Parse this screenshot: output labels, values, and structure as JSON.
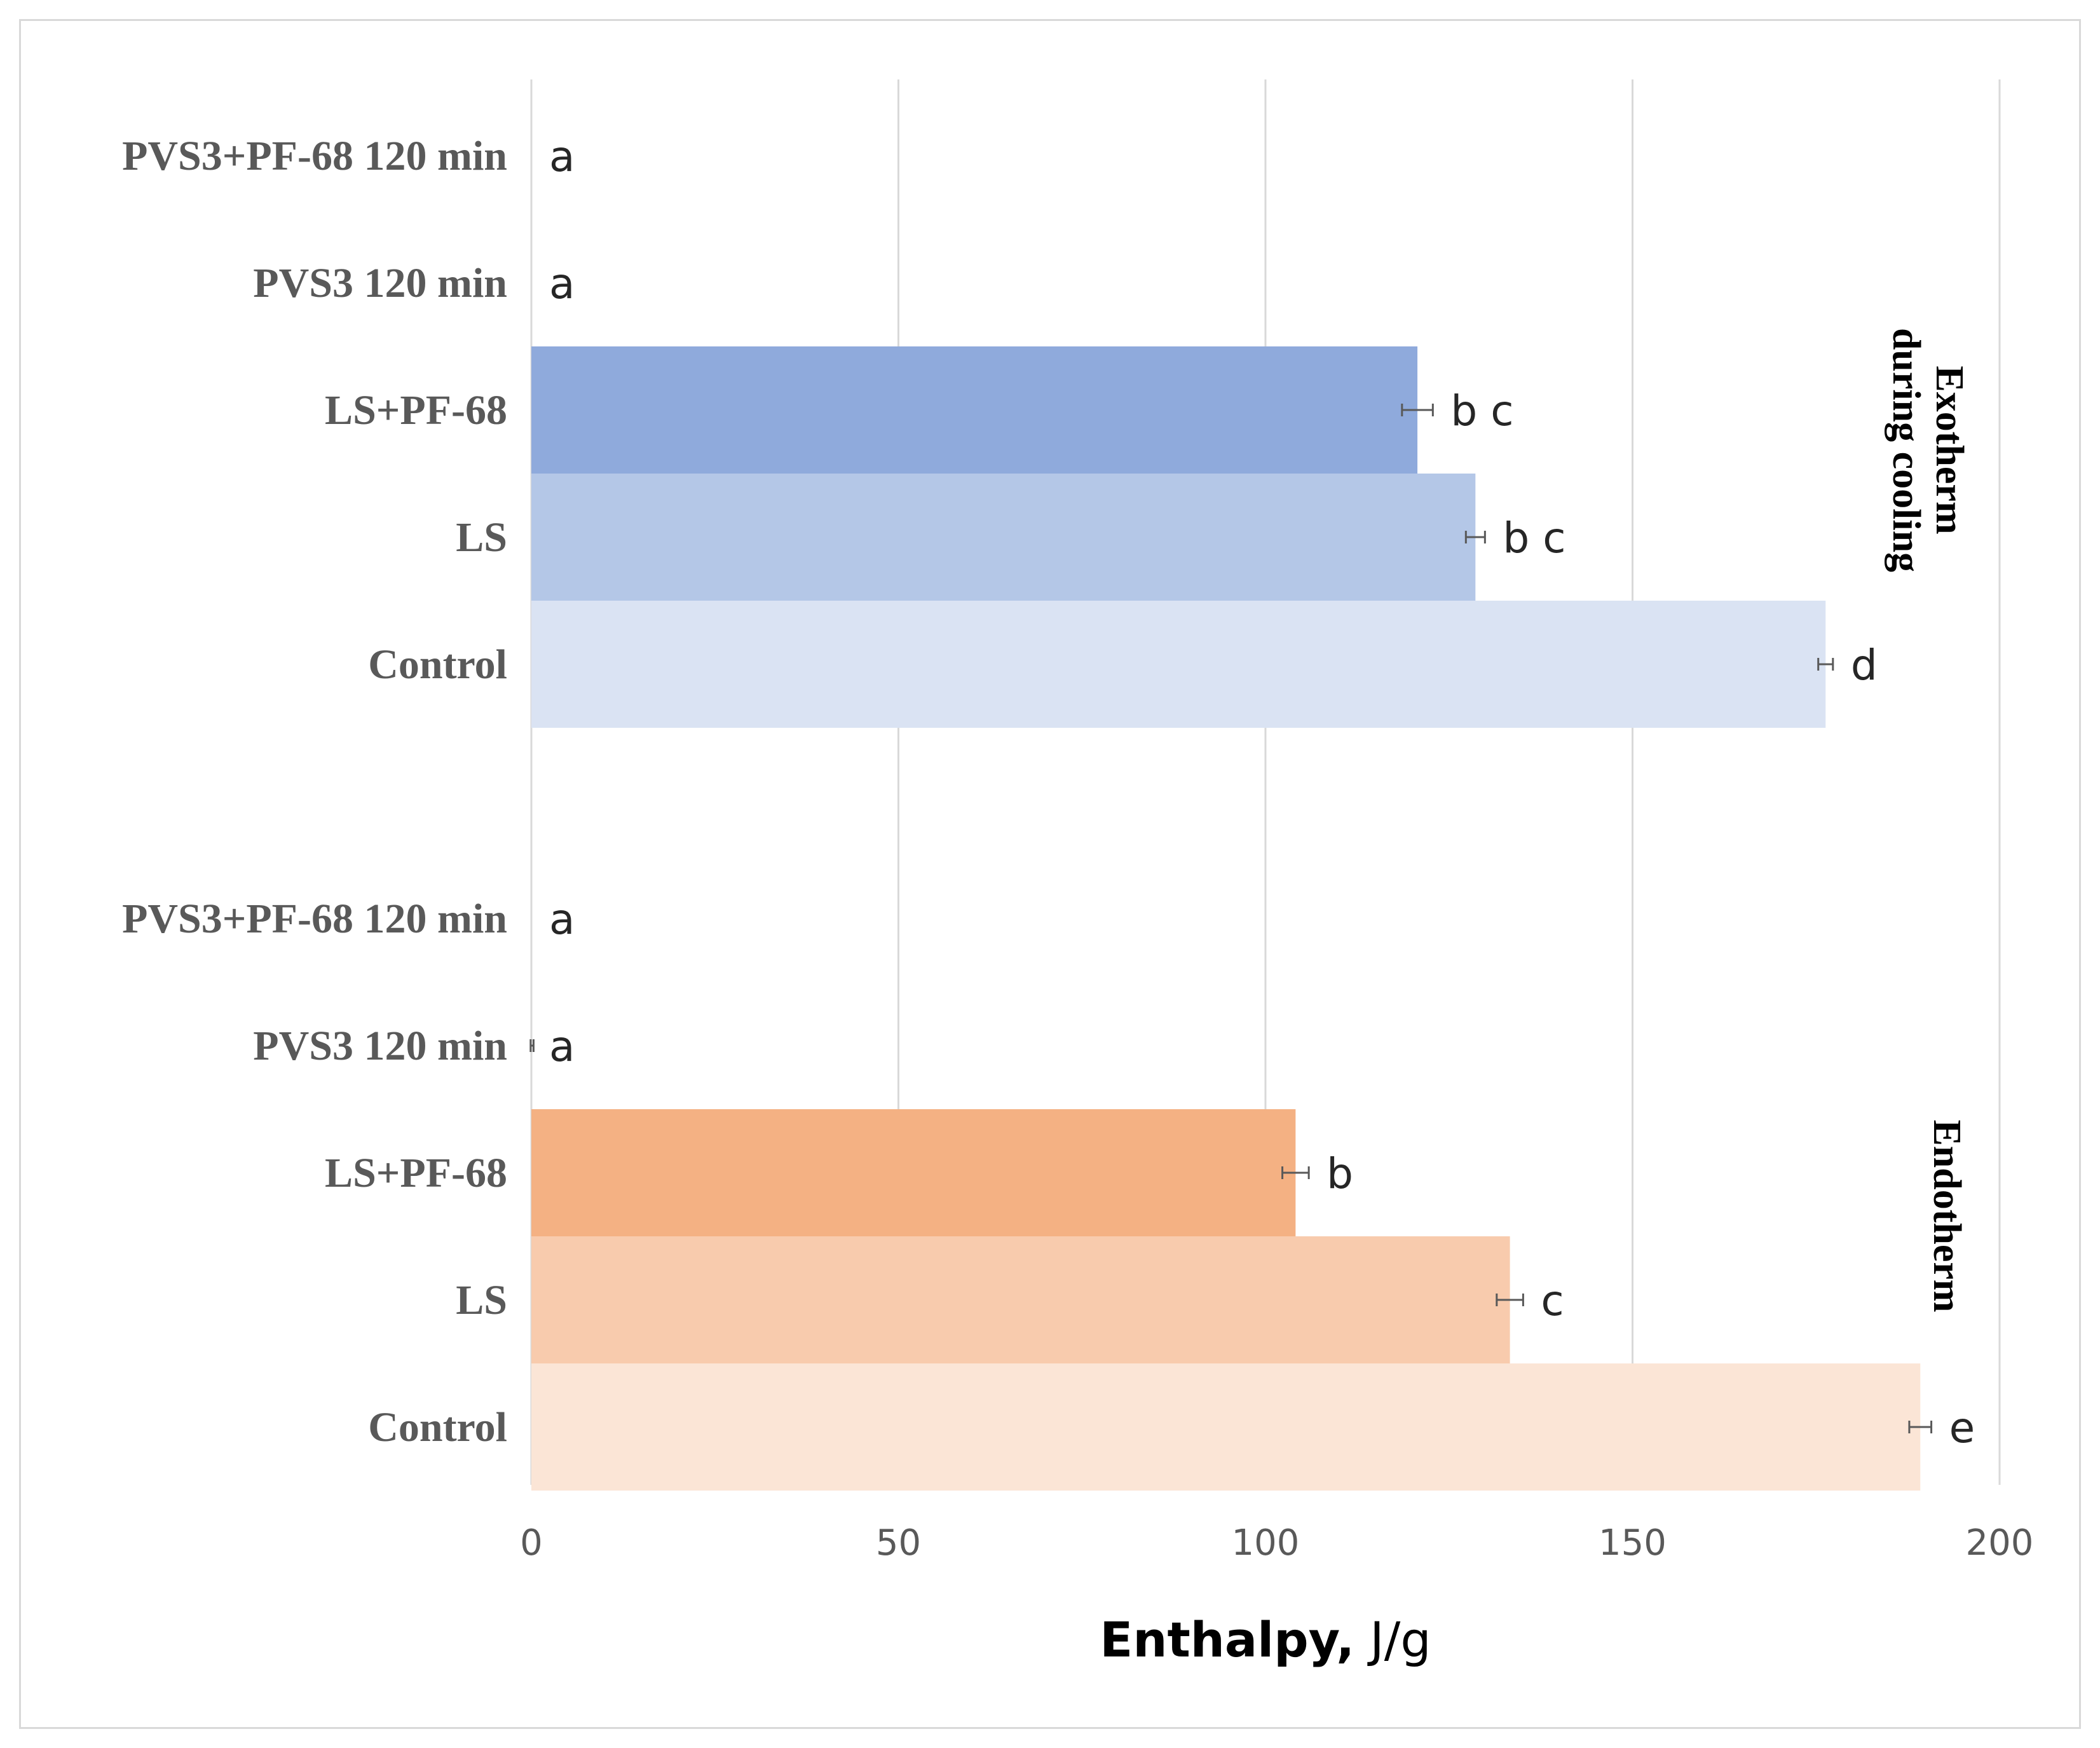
{
  "chart_data": {
    "type": "bar",
    "orientation": "horizontal",
    "xlabel_bold": "Enthalpy,",
    "xlabel_rest": " J/g",
    "xlim": [
      0,
      200
    ],
    "xticks": [
      0,
      50,
      100,
      150,
      200
    ],
    "grid": true,
    "groups": [
      {
        "name": "Exotherm during cooling",
        "label_lines": [
          "Exotherm",
          "during cooling"
        ],
        "bars": [
          {
            "category": "PVS3+PF-68 120 min",
            "value": 0,
            "error": 0,
            "letter": "a",
            "color": "#8faadc"
          },
          {
            "category": "PVS3 120 min",
            "value": 0,
            "error": 0,
            "letter": "a",
            "color": "#8faadc"
          },
          {
            "category": "LS+PF-68",
            "value": 120.7,
            "error": 2.1,
            "letter": "b  c",
            "color": "#8faadc"
          },
          {
            "category": "LS",
            "value": 128.6,
            "error": 1.3,
            "letter": "b  c",
            "color": "#b4c7e7"
          },
          {
            "category": "Control",
            "value": 176.3,
            "error": 1.0,
            "letter": "d",
            "color": "#dae3f3"
          }
        ]
      },
      {
        "name": "Endotherm",
        "label_lines": [
          "Endotherm"
        ],
        "bars": [
          {
            "category": "PVS3+PF-68 120 min",
            "value": 0,
            "error": 0,
            "letter": "a",
            "color": "#f4b183"
          },
          {
            "category": "PVS3 120 min",
            "value": 0.1,
            "error": 0.2,
            "letter": "a",
            "color": "#f4b183"
          },
          {
            "category": "LS+PF-68",
            "value": 104.1,
            "error": 1.8,
            "letter": "b",
            "color": "#f4b183"
          },
          {
            "category": "LS",
            "value": 133.3,
            "error": 1.8,
            "letter": "c",
            "color": "#f8cbad"
          },
          {
            "category": "Control",
            "value": 189.2,
            "error": 1.5,
            "letter": "e",
            "color": "#fbe5d6"
          }
        ]
      }
    ]
  }
}
